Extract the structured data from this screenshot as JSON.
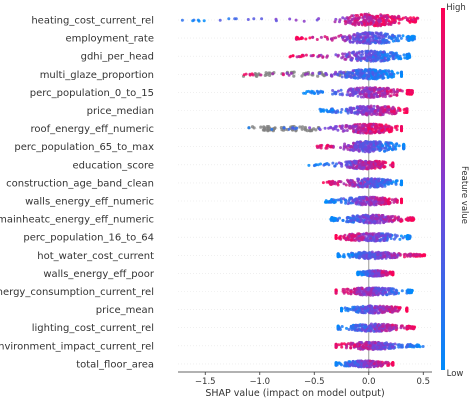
{
  "chart_data": {
    "type": "scatter",
    "subtype": "shap-beeswarm",
    "title": "",
    "xlabel": "SHAP value (impact on model output)",
    "ylabel": "",
    "xlim": [
      -1.75,
      0.58
    ],
    "x_ticks": [
      -1.5,
      -1.0,
      -0.5,
      0.0,
      0.5
    ],
    "x_tick_labels": [
      "−1.5",
      "−1.0",
      "−0.5",
      "0.0",
      "0.5"
    ],
    "zero_line": true,
    "colorbar": {
      "label": "Feature value",
      "high_label": "High",
      "low_label": "Low",
      "high_color": "#ff0052",
      "low_color": "#008bfb",
      "mid_color": "#7b3fd6"
    },
    "missing_value_color": "#808080",
    "features": [
      {
        "name": "heating_cost_current_rel",
        "min": -1.72,
        "max": 0.45,
        "spread": 1.0,
        "low_side": "negative",
        "has_gray": false
      },
      {
        "name": "employment_rate",
        "min": -0.68,
        "max": 0.42,
        "spread": 0.9,
        "low_side": "positive",
        "has_gray": false
      },
      {
        "name": "gdhi_per_head",
        "min": -0.75,
        "max": 0.38,
        "spread": 0.85,
        "low_side": "positive",
        "has_gray": false
      },
      {
        "name": "multi_glaze_proportion",
        "min": -1.15,
        "max": 0.3,
        "spread": 0.8,
        "low_side": "positive",
        "has_gray": true,
        "gray_min": -1.15,
        "gray_max": -0.05
      },
      {
        "name": "perc_population_0_to_15",
        "min": -0.6,
        "max": 0.4,
        "spread": 0.8,
        "low_side": "negative",
        "has_gray": false
      },
      {
        "name": "price_median",
        "min": -0.45,
        "max": 0.35,
        "spread": 0.75,
        "low_side": "negative",
        "has_gray": false
      },
      {
        "name": "roof_energy_eff_numeric",
        "min": -1.1,
        "max": 0.3,
        "spread": 0.75,
        "low_side": "negative",
        "has_gray": true,
        "gray_min": -1.1,
        "gray_max": -0.45
      },
      {
        "name": "perc_population_65_to_max",
        "min": -0.5,
        "max": 0.32,
        "spread": 0.85,
        "low_side": "positive",
        "has_gray": false
      },
      {
        "name": "education_score",
        "min": -0.55,
        "max": 0.22,
        "spread": 0.7,
        "low_side": "negative",
        "has_gray": false
      },
      {
        "name": "construction_age_band_clean",
        "min": -0.42,
        "max": 0.3,
        "spread": 0.7,
        "low_side": "positive",
        "has_gray": false
      },
      {
        "name": "walls_energy_eff_numeric",
        "min": -0.4,
        "max": 0.3,
        "spread": 0.65,
        "low_side": "negative",
        "has_gray": false
      },
      {
        "name": "mainheatc_energy_eff_numeric",
        "min": -0.35,
        "max": 0.42,
        "spread": 0.65,
        "low_side": "negative",
        "has_gray": false
      },
      {
        "name": "perc_population_16_to_64",
        "min": -0.3,
        "max": 0.38,
        "spread": 0.65,
        "low_side": "positive",
        "has_gray": false
      },
      {
        "name": "hot_water_cost_current",
        "min": -0.28,
        "max": 0.52,
        "spread": 0.55,
        "low_side": "negative",
        "has_gray": false
      },
      {
        "name": "walls_energy_eff_poor",
        "min": -0.1,
        "max": 0.22,
        "spread": 0.45,
        "low_side": "negative",
        "has_gray": false
      },
      {
        "name": "energy_consumption_current_rel",
        "min": -0.3,
        "max": 0.4,
        "spread": 0.6,
        "low_side": "positive",
        "has_gray": false
      },
      {
        "name": "price_mean",
        "min": -0.25,
        "max": 0.35,
        "spread": 0.6,
        "low_side": "negative",
        "has_gray": false
      },
      {
        "name": "lighting_cost_current_rel",
        "min": -0.28,
        "max": 0.42,
        "spread": 0.6,
        "low_side": "negative",
        "has_gray": false
      },
      {
        "name": "environment_impact_current_rel",
        "min": -0.3,
        "max": 0.5,
        "spread": 0.6,
        "low_side": "positive",
        "has_gray": false
      },
      {
        "name": "total_floor_area",
        "min": -0.3,
        "max": 0.22,
        "spread": 0.5,
        "low_side": "negative",
        "has_gray": false
      }
    ]
  }
}
